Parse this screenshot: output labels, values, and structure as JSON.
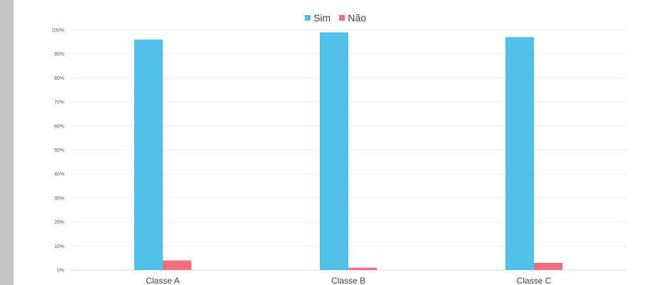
{
  "chart_data": {
    "type": "bar",
    "categories": [
      "Classe A",
      "Classe B",
      "Classe C"
    ],
    "series": [
      {
        "name": "Sim",
        "values": [
          96,
          99,
          97
        ],
        "color": "#4fc1e9"
      },
      {
        "name": "Não",
        "values": [
          4,
          1,
          3
        ],
        "color": "#f26d7d"
      }
    ],
    "y_ticks": [
      "0%",
      "10%",
      "20%",
      "30%",
      "40%",
      "50%",
      "60%",
      "70%",
      "80%",
      "90%",
      "100%"
    ],
    "ylim": [
      0,
      100
    ],
    "grid": true,
    "legend_position": "top-center",
    "title": "",
    "xlabel": "",
    "ylabel": ""
  }
}
